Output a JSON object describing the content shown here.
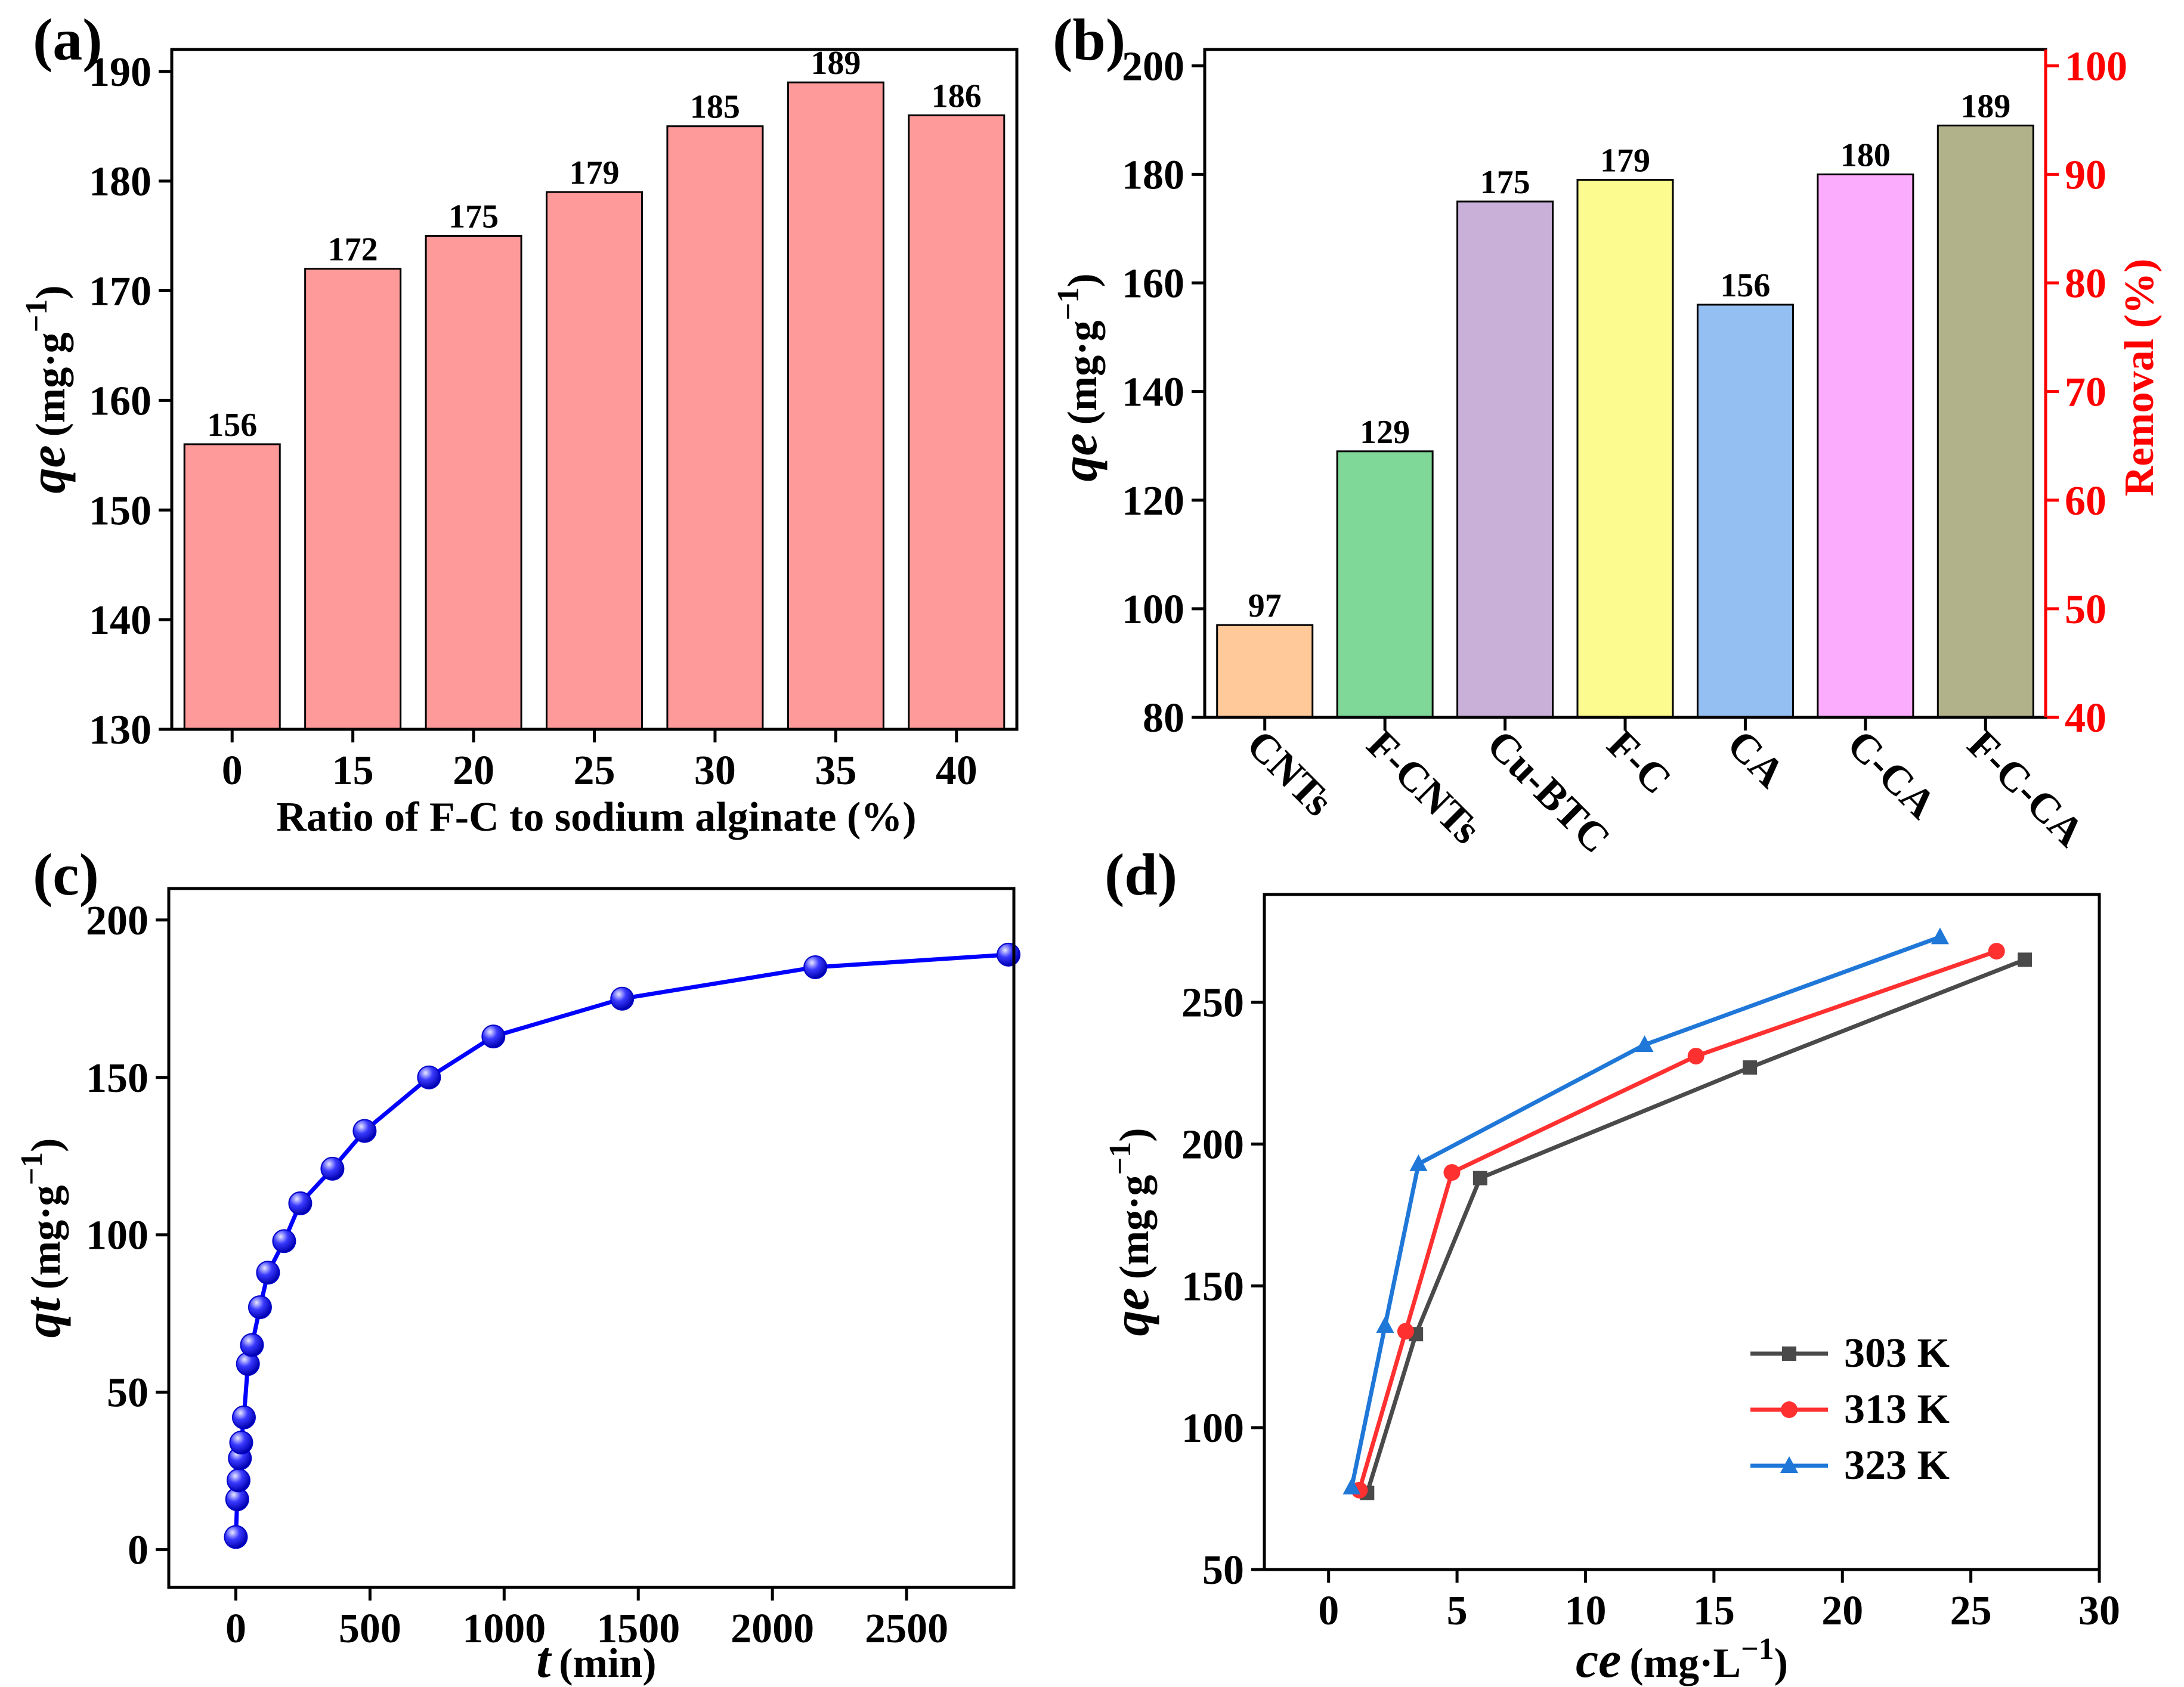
{
  "chart_data": [
    {
      "panel": "(a)",
      "type": "bar",
      "categories": [
        "0",
        "15",
        "20",
        "25",
        "30",
        "35",
        "40"
      ],
      "values": [
        156,
        172,
        175,
        179,
        185,
        189,
        186
      ],
      "value_labels": [
        "156",
        "172",
        "175",
        "179",
        "185",
        "189",
        "186"
      ],
      "xlabel": "Ratio of F-C to sodium alginate (%)",
      "ylabel": "qe (mg·g−1)",
      "ylabel_var": "qe",
      "ylabel_unit": "(mg·g",
      "ylabel_sup": "−1",
      "ylabel_close": ")",
      "ylim": [
        130,
        192
      ],
      "yticks": [
        130,
        140,
        150,
        160,
        170,
        180,
        190
      ],
      "bar_color": "#ff9a9a"
    },
    {
      "panel": "(b)",
      "type": "bar",
      "categories": [
        "CNTs",
        "F-CNTs",
        "Cu-BTC",
        "F-C",
        "CA",
        "C-CA",
        "F-C-CA"
      ],
      "values": [
        97,
        129,
        175,
        179,
        156,
        180,
        189
      ],
      "value_labels": [
        "97",
        "129",
        "175",
        "179",
        "156",
        "180",
        "189"
      ],
      "bar_colors": [
        "#ffc999",
        "#80d898",
        "#c9b0d8",
        "#fbfb8f",
        "#94bff2",
        "#fcacfc",
        "#b2b28a"
      ],
      "ylabel": "qe (mg·g−1)",
      "ylabel_var": "qe",
      "ylabel_unit": "(mg·g",
      "ylabel_sup": "−1",
      "ylabel_close": ")",
      "ylim": [
        80,
        203
      ],
      "yticks": [
        80,
        100,
        120,
        140,
        160,
        180,
        200
      ],
      "y2label": "Removal (%)",
      "y2lim": [
        40,
        101.5
      ],
      "y2ticks": [
        40,
        50,
        60,
        70,
        80,
        90,
        100
      ],
      "y2_color": "#ff0000"
    },
    {
      "panel": "(c)",
      "type": "line",
      "x": [
        0,
        5,
        10,
        15,
        20,
        30,
        45,
        60,
        90,
        120,
        180,
        240,
        360,
        480,
        720,
        960,
        1440,
        2160,
        2880
      ],
      "y": [
        4,
        16,
        22,
        29,
        34,
        42,
        59,
        65,
        77,
        88,
        98,
        110,
        121,
        133,
        150,
        163,
        175,
        185,
        189
      ],
      "xlabel_var": "t",
      "xlabel_unit": "(min)",
      "ylabel_var": "qt",
      "ylabel_unit": "(mg·g",
      "ylabel_sup": "−1",
      "ylabel_close": ")",
      "xlim": [
        -250,
        2900
      ],
      "ylim": [
        -12,
        210
      ],
      "xticks": [
        0,
        500,
        1000,
        1500,
        2000,
        2500
      ],
      "yticks": [
        0,
        50,
        100,
        150,
        200
      ],
      "color": "#0000ff"
    },
    {
      "panel": "(d)",
      "type": "line",
      "series": [
        {
          "name": "303 K",
          "color": "#4a4a4a",
          "marker": "square",
          "x": [
            1.5,
            3.4,
            5.9,
            16.4,
            27.1
          ],
          "y": [
            77,
            133,
            188,
            227,
            265
          ]
        },
        {
          "name": "313 K",
          "color": "#ff3030",
          "marker": "circle",
          "x": [
            1.2,
            3.0,
            4.8,
            14.3,
            26.0
          ],
          "y": [
            78,
            134,
            190,
            231,
            268
          ]
        },
        {
          "name": "323 K",
          "color": "#1f77d8",
          "marker": "triangle",
          "x": [
            0.9,
            2.2,
            3.5,
            12.3,
            23.8
          ],
          "y": [
            79,
            136,
            193,
            235,
            273
          ]
        }
      ],
      "xlabel_var": "ce",
      "xlabel_unit": "(mg·L",
      "xlabel_sup": "−1",
      "xlabel_close": ")",
      "ylabel_var": "qe",
      "ylabel_unit": "(mg·g",
      "ylabel_sup": "−1",
      "ylabel_close": ")",
      "xlim": [
        -2.5,
        30
      ],
      "ylim": [
        50,
        288
      ],
      "xticks": [
        0,
        5,
        10,
        15,
        20,
        25,
        30
      ],
      "yticks": [
        50,
        100,
        150,
        200,
        250
      ],
      "legend_position": "bottom-right"
    }
  ]
}
